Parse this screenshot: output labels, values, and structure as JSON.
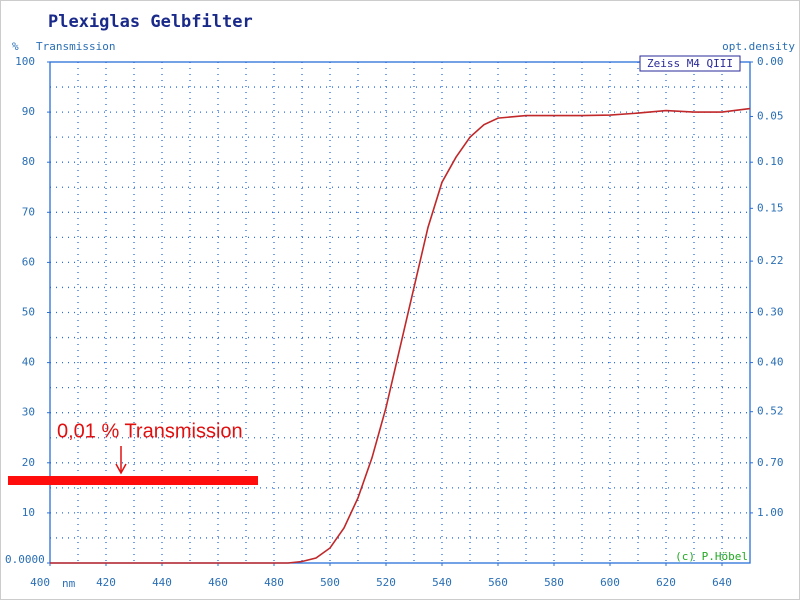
{
  "chart_data": {
    "type": "line",
    "title": "Plexiglas Gelbfilter",
    "y_unit": "%",
    "y_label": "Transmission",
    "y2_label": "opt.density",
    "x_unit": "nm",
    "credit": "(c) P.Höbel",
    "annotation": "0,01 % Transmission",
    "x": [
      400,
      410,
      420,
      430,
      440,
      450,
      460,
      470,
      480,
      485,
      490,
      495,
      500,
      505,
      510,
      515,
      520,
      525,
      530,
      535,
      540,
      545,
      550,
      555,
      560,
      570,
      580,
      590,
      600,
      610,
      620,
      630,
      640,
      650
    ],
    "series": [
      {
        "name": "Zeiss M4 QIII",
        "color": "#c0282a",
        "values": [
          0,
          0,
          0,
          0,
          0,
          0,
          0,
          0,
          0,
          0,
          0.3,
          1,
          3,
          7,
          13,
          21,
          31,
          43,
          55,
          67,
          76,
          81,
          85,
          87.5,
          88.8,
          89.3,
          89.3,
          89.3,
          89.4,
          89.8,
          90.3,
          90,
          90,
          90.7
        ]
      }
    ],
    "xlim": [
      400,
      650
    ],
    "xticks": [
      400,
      420,
      440,
      460,
      480,
      500,
      520,
      540,
      560,
      580,
      600,
      620,
      640
    ],
    "ylim": [
      0,
      100
    ],
    "yticks": [
      {
        "value": 0,
        "label": "0.0000"
      },
      10,
      20,
      30,
      40,
      50,
      60,
      70,
      80,
      90,
      100
    ],
    "y2scale": "density",
    "y2ticks": [
      {
        "value": 0,
        "label": "0.00"
      },
      0.05,
      {
        "value": 0.0969,
        "label": "0.10"
      },
      0.15,
      0.22,
      {
        "value": 0.301,
        "label": "0.30"
      },
      {
        "value": 0.3979,
        "label": "0.40"
      },
      0.52,
      {
        "value": 0.699,
        "label": "0.70"
      },
      {
        "value": 1,
        "label": "1.00"
      }
    ],
    "grid": true
  }
}
